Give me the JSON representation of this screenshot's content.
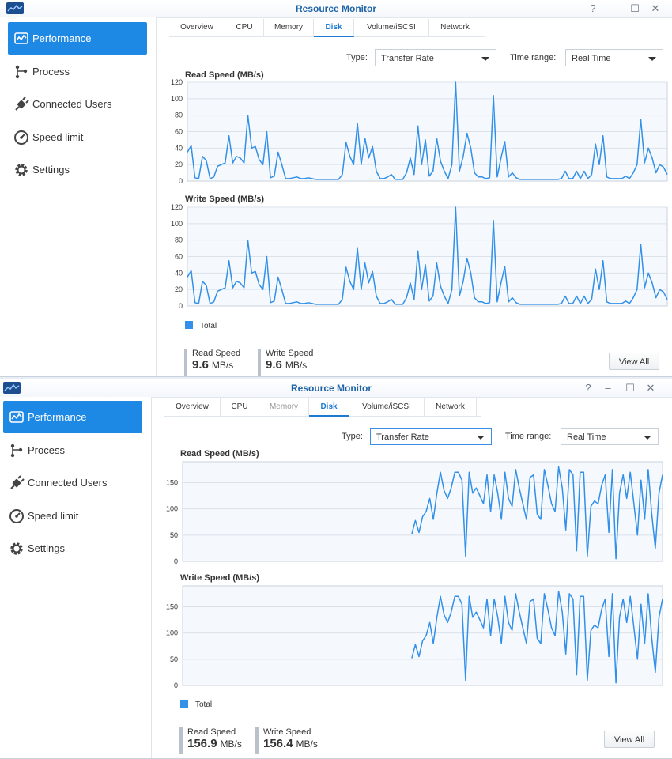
{
  "colors": {
    "accent": "#1e88e5",
    "series": "#3290e8",
    "title": "#1e63a6"
  },
  "windows": [
    {
      "title": "Resource Monitor",
      "controls": [
        "?",
        "–",
        "☐",
        "✕"
      ],
      "sidebar": {
        "items": [
          {
            "label": "Performance",
            "icon": "performance-icon",
            "active": true
          },
          {
            "label": "Process",
            "icon": "process-icon"
          },
          {
            "label": "Connected Users",
            "icon": "plug-icon"
          },
          {
            "label": "Speed limit",
            "icon": "speedometer-icon"
          },
          {
            "label": "Settings",
            "icon": "gear-icon"
          }
        ]
      },
      "tabs": [
        {
          "label": "Overview"
        },
        {
          "label": "CPU"
        },
        {
          "label": "Memory"
        },
        {
          "label": "Disk",
          "active": true
        },
        {
          "label": "Volume/iSCSI"
        },
        {
          "label": "Network"
        }
      ],
      "type_label": "Type:",
      "type_value": "Transfer Rate",
      "range_label": "Time range:",
      "range_value": "Real Time",
      "legend": "Total",
      "stats": [
        {
          "label": "Read Speed",
          "value": "9.6",
          "unit": "MB/s"
        },
        {
          "label": "Write Speed",
          "value": "9.6",
          "unit": "MB/s"
        }
      ],
      "view_all": "View All"
    },
    {
      "title": "Resource Monitor",
      "controls": [
        "?",
        "–",
        "☐",
        "✕"
      ],
      "sidebar": {
        "items": [
          {
            "label": "Performance",
            "icon": "performance-icon",
            "active": true
          },
          {
            "label": "Process",
            "icon": "process-icon"
          },
          {
            "label": "Connected Users",
            "icon": "plug-icon"
          },
          {
            "label": "Speed limit",
            "icon": "speedometer-icon"
          },
          {
            "label": "Settings",
            "icon": "gear-icon"
          }
        ]
      },
      "tabs": [
        {
          "label": "Overview"
        },
        {
          "label": "CPU"
        },
        {
          "label": "Memory",
          "disabled": true
        },
        {
          "label": "Disk",
          "active": true
        },
        {
          "label": "Volume/iSCSI"
        },
        {
          "label": "Network"
        }
      ],
      "type_label": "Type:",
      "type_value": "Transfer Rate",
      "range_label": "Time range:",
      "range_value": "Real Time",
      "legend": "Total",
      "stats": [
        {
          "label": "Read Speed",
          "value": "156.9",
          "unit": "MB/s"
        },
        {
          "label": "Write Speed",
          "value": "156.4",
          "unit": "MB/s"
        }
      ],
      "view_all": "View All"
    }
  ],
  "chart_data": [
    {
      "type": "line",
      "title": "Read Speed (MB/s)",
      "series_color": "#3290e8",
      "ylim": [
        0,
        120
      ],
      "yticks": [
        0,
        20,
        40,
        60,
        80,
        100,
        120
      ],
      "grid": true,
      "values": [
        35,
        43,
        4,
        3,
        30,
        25,
        3,
        5,
        18,
        20,
        22,
        55,
        22,
        30,
        28,
        22,
        80,
        40,
        42,
        26,
        20,
        60,
        4,
        6,
        35,
        20,
        3,
        3,
        4,
        5,
        3,
        3,
        4,
        3,
        2,
        2,
        2,
        2,
        2,
        2,
        2,
        8,
        47,
        30,
        20,
        70,
        20,
        52,
        28,
        42,
        12,
        3,
        3,
        5,
        8,
        2,
        2,
        2,
        10,
        28,
        8,
        67,
        20,
        50,
        6,
        12,
        52,
        24,
        12,
        3,
        20,
        120,
        12,
        30,
        58,
        40,
        10,
        5,
        5,
        3,
        4,
        104,
        5,
        28,
        48,
        5,
        10,
        4,
        2,
        2,
        2,
        2,
        2,
        2,
        2,
        2,
        2,
        2,
        2,
        3,
        12,
        3,
        3,
        12,
        3,
        12,
        3,
        8,
        45,
        20,
        55,
        5,
        3,
        3,
        3,
        3,
        6,
        3,
        10,
        20,
        75,
        22,
        40,
        28,
        10,
        20,
        17,
        8
      ]
    },
    {
      "type": "line",
      "title": "Write Speed (MB/s)",
      "series_color": "#3290e8",
      "ylim": [
        0,
        120
      ],
      "yticks": [
        0,
        20,
        40,
        60,
        80,
        100,
        120
      ],
      "grid": true,
      "values": [
        35,
        43,
        4,
        3,
        30,
        25,
        3,
        5,
        18,
        20,
        22,
        55,
        22,
        30,
        28,
        22,
        80,
        40,
        42,
        26,
        20,
        60,
        4,
        6,
        35,
        20,
        3,
        3,
        4,
        5,
        3,
        3,
        4,
        3,
        2,
        2,
        2,
        2,
        2,
        2,
        2,
        8,
        47,
        30,
        20,
        70,
        20,
        52,
        28,
        42,
        12,
        3,
        3,
        5,
        8,
        2,
        2,
        2,
        10,
        28,
        8,
        67,
        20,
        50,
        6,
        12,
        52,
        24,
        12,
        3,
        20,
        120,
        12,
        30,
        58,
        40,
        10,
        5,
        5,
        3,
        4,
        104,
        5,
        28,
        48,
        5,
        10,
        4,
        2,
        2,
        2,
        2,
        2,
        2,
        2,
        2,
        2,
        2,
        2,
        3,
        12,
        3,
        3,
        12,
        3,
        12,
        3,
        8,
        45,
        20,
        55,
        5,
        3,
        3,
        3,
        3,
        6,
        3,
        10,
        20,
        75,
        22,
        40,
        28,
        10,
        20,
        17,
        8
      ]
    },
    {
      "type": "line",
      "title": "Read Speed (MB/s)",
      "series_color": "#3290e8",
      "ylim": [
        0,
        190
      ],
      "yticks": [
        0,
        50,
        100,
        150
      ],
      "grid": true,
      "values": [
        null,
        null,
        null,
        null,
        null,
        null,
        null,
        null,
        null,
        null,
        null,
        null,
        null,
        null,
        null,
        null,
        null,
        null,
        null,
        null,
        null,
        null,
        null,
        null,
        null,
        null,
        null,
        null,
        null,
        null,
        null,
        null,
        null,
        null,
        null,
        null,
        null,
        null,
        null,
        null,
        null,
        null,
        null,
        null,
        null,
        null,
        null,
        null,
        null,
        null,
        null,
        null,
        null,
        null,
        null,
        null,
        null,
        null,
        null,
        null,
        null,
        null,
        null,
        null,
        52,
        78,
        55,
        85,
        95,
        120,
        80,
        130,
        170,
        135,
        120,
        140,
        170,
        170,
        155,
        10,
        170,
        130,
        140,
        125,
        110,
        165,
        95,
        165,
        130,
        80,
        170,
        120,
        105,
        175,
        140,
        110,
        80,
        160,
        165,
        90,
        80,
        175,
        145,
        110,
        95,
        180,
        140,
        60,
        175,
        165,
        20,
        170,
        170,
        10,
        105,
        115,
        110,
        145,
        165,
        55,
        175,
        5,
        130,
        165,
        120,
        170,
        110,
        50,
        155,
        80,
        175,
        90,
        25,
        130,
        165
      ]
    },
    {
      "type": "line",
      "title": "Write Speed (MB/s)",
      "series_color": "#3290e8",
      "ylim": [
        0,
        190
      ],
      "yticks": [
        0,
        50,
        100,
        150
      ],
      "grid": true,
      "values": [
        null,
        null,
        null,
        null,
        null,
        null,
        null,
        null,
        null,
        null,
        null,
        null,
        null,
        null,
        null,
        null,
        null,
        null,
        null,
        null,
        null,
        null,
        null,
        null,
        null,
        null,
        null,
        null,
        null,
        null,
        null,
        null,
        null,
        null,
        null,
        null,
        null,
        null,
        null,
        null,
        null,
        null,
        null,
        null,
        null,
        null,
        null,
        null,
        null,
        null,
        null,
        null,
        null,
        null,
        null,
        null,
        null,
        null,
        null,
        null,
        null,
        null,
        null,
        null,
        52,
        78,
        55,
        85,
        95,
        120,
        80,
        130,
        170,
        135,
        120,
        140,
        170,
        170,
        155,
        10,
        170,
        130,
        140,
        125,
        110,
        165,
        95,
        165,
        130,
        80,
        170,
        120,
        105,
        175,
        140,
        110,
        80,
        160,
        165,
        90,
        80,
        175,
        145,
        110,
        95,
        180,
        140,
        60,
        175,
        165,
        20,
        170,
        170,
        10,
        105,
        115,
        110,
        145,
        165,
        55,
        175,
        5,
        130,
        165,
        120,
        170,
        110,
        50,
        155,
        80,
        175,
        90,
        25,
        130,
        165
      ]
    }
  ]
}
